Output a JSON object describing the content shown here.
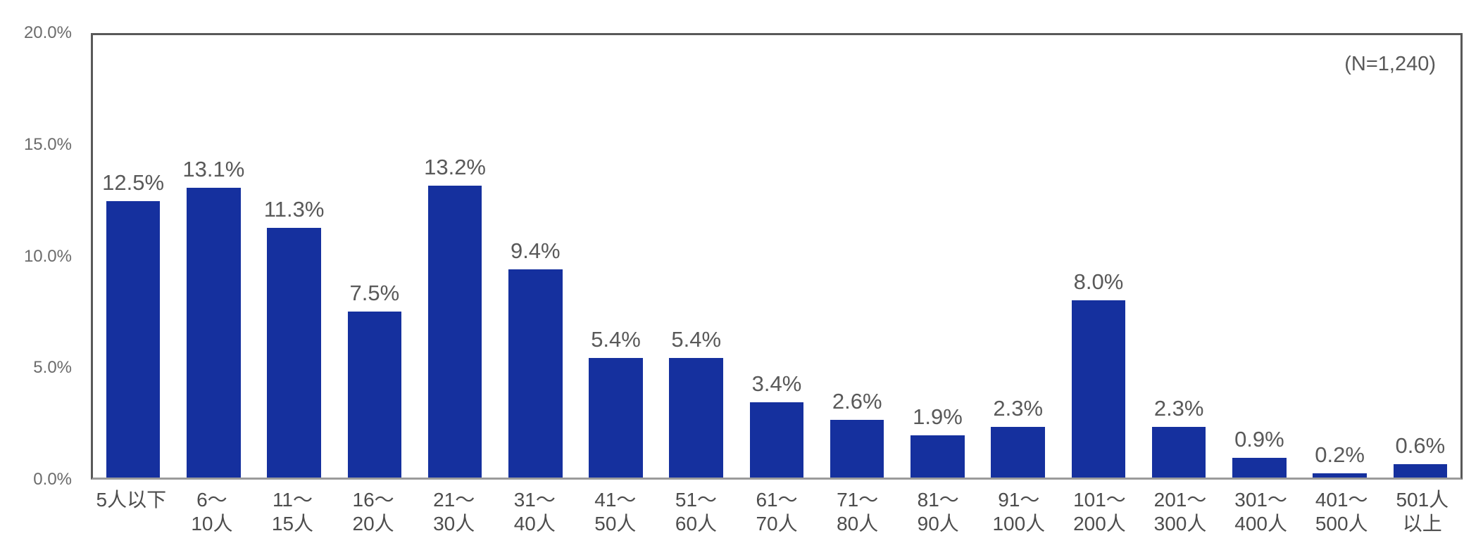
{
  "chart_data": {
    "type": "bar",
    "title": "",
    "n_label": "(N=1,240)",
    "categories": [
      "5人以下",
      "6～\n10人",
      "11～\n15人",
      "16～\n20人",
      "21～\n30人",
      "31～\n40人",
      "41～\n50人",
      "51～\n60人",
      "61～\n70人",
      "71～\n80人",
      "81～\n90人",
      "91～\n100人",
      "101～\n200人",
      "201～\n300人",
      "301～\n400人",
      "401～\n500人",
      "501人\n以上"
    ],
    "values": [
      12.5,
      13.1,
      11.3,
      7.5,
      13.2,
      9.4,
      5.4,
      5.4,
      3.4,
      2.6,
      1.9,
      2.3,
      8.0,
      2.3,
      0.9,
      0.2,
      0.6
    ],
    "value_labels": [
      "12.5%",
      "13.1%",
      "11.3%",
      "7.5%",
      "13.2%",
      "9.4%",
      "5.4%",
      "5.4%",
      "3.4%",
      "2.6%",
      "1.9%",
      "2.3%",
      "8.0%",
      "2.3%",
      "0.9%",
      "0.2%",
      "0.6%"
    ],
    "xlabel": "",
    "ylabel": "",
    "ylim": [
      0,
      20
    ],
    "y_ticks": [
      "0.0%",
      "5.0%",
      "10.0%",
      "15.0%",
      "20.0%"
    ],
    "y_tick_values": [
      0,
      5,
      10,
      15,
      20
    ],
    "grid": false,
    "legend_position": "none",
    "bar_color": "#15309E",
    "text_color": "#595959",
    "border_color": "#595959"
  }
}
